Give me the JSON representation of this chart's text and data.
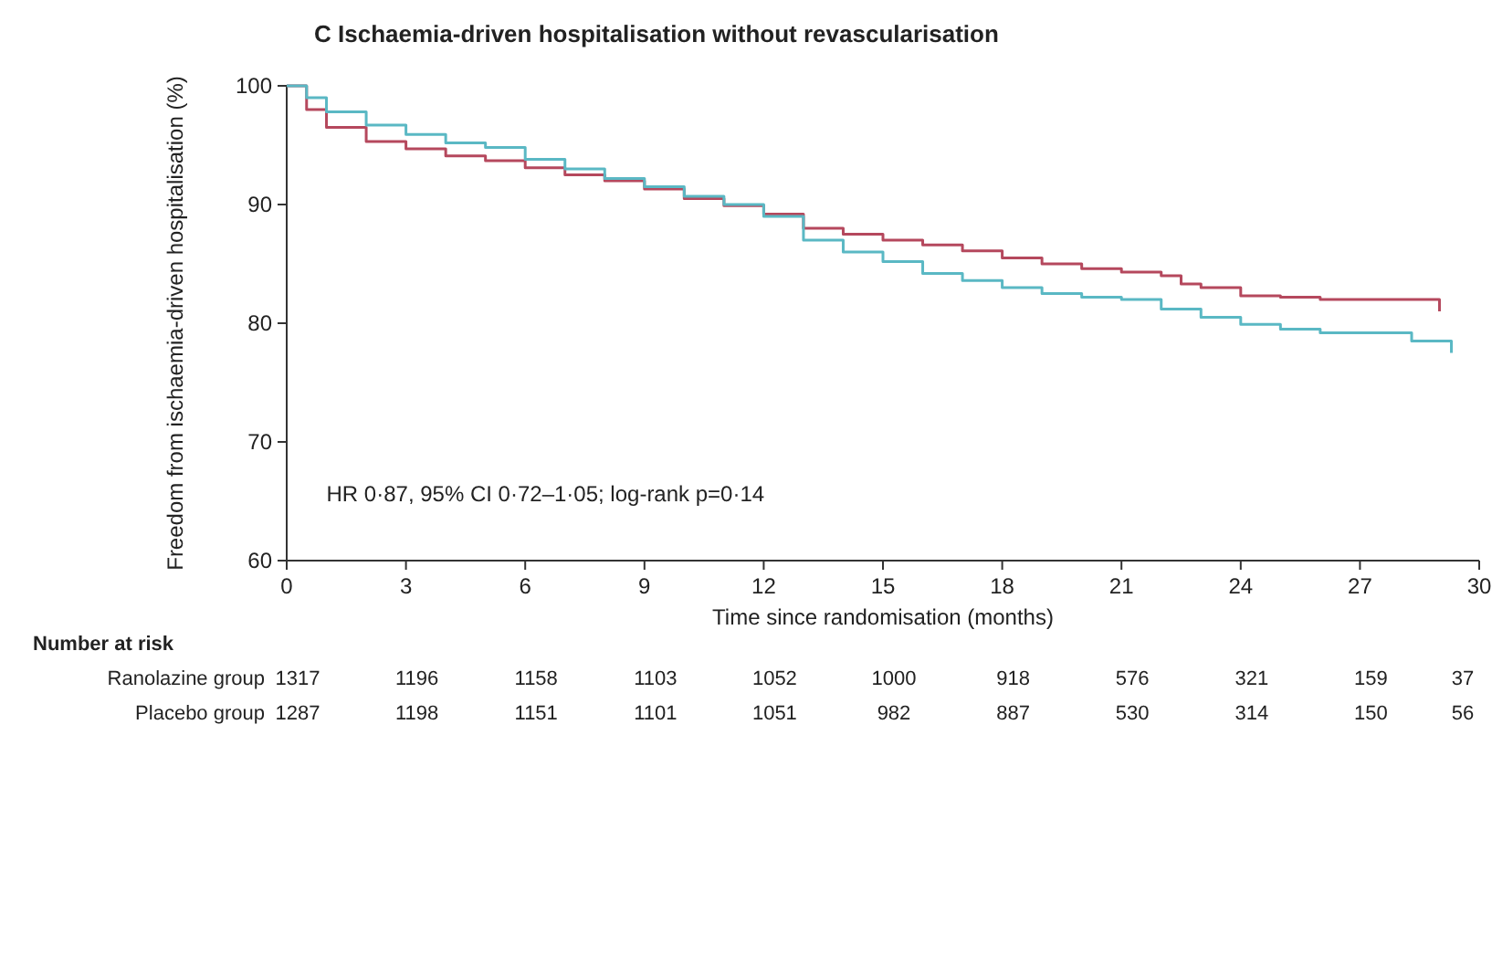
{
  "chart_data": {
    "type": "step",
    "title": "C  Ischaemia-driven hospitalisation without revascularisation",
    "xlabel": "Time since randomisation (months)",
    "ylabel": "Freedom from ischaemia-driven hospitalisation (%)",
    "xlim": [
      0,
      30
    ],
    "xticks": [
      0,
      3,
      6,
      9,
      12,
      15,
      18,
      21,
      24,
      27,
      30
    ],
    "ylim": [
      60,
      100
    ],
    "yticks": [
      60,
      70,
      80,
      90,
      100
    ],
    "series": [
      {
        "color": "#b5485d",
        "x": [
          0,
          0.5,
          1,
          2,
          3,
          4,
          5,
          6,
          7,
          8,
          9,
          10,
          11,
          12,
          13,
          14,
          15,
          16,
          17,
          18,
          19,
          20,
          21,
          22,
          22.5,
          23,
          24,
          25,
          26,
          28,
          29,
          29
        ],
        "values": [
          100,
          98,
          96.5,
          95.3,
          94.7,
          94.1,
          93.7,
          93.1,
          92.5,
          92,
          91.3,
          90.5,
          89.9,
          89.2,
          88,
          87.5,
          87,
          86.6,
          86.1,
          85.5,
          85,
          84.6,
          84.3,
          84,
          83.3,
          83,
          82.3,
          82.2,
          82,
          82,
          82,
          81
        ]
      },
      {
        "color": "#5ab8c4",
        "x": [
          0,
          0.5,
          1,
          2,
          3,
          4,
          5,
          6,
          7,
          8,
          9,
          10,
          11,
          12,
          13,
          14,
          15,
          16,
          17,
          18,
          19,
          20,
          21,
          22,
          23,
          24,
          25,
          26,
          28,
          28.3,
          29.3,
          29.3
        ],
        "values": [
          100,
          99,
          97.8,
          96.7,
          95.9,
          95.2,
          94.8,
          93.8,
          93,
          92.2,
          91.5,
          90.7,
          90,
          89,
          87,
          86,
          85.2,
          84.2,
          83.6,
          83,
          82.5,
          82.2,
          82,
          81.2,
          80.5,
          79.9,
          79.5,
          79.2,
          79.2,
          78.5,
          78.5,
          77.5
        ]
      }
    ],
    "annotations": [
      "HR 0·87, 95% CI 0·72–1·05; log-rank p=0·14",
      "Number at risk",
      "Ranolazine group",
      "1317",
      "1196",
      "1158",
      "1103",
      "1052",
      "1000",
      "918",
      "576",
      "321",
      "159",
      "37",
      "Placebo group",
      "1287",
      "1198",
      "1151",
      "1101",
      "1051",
      "982",
      "887",
      "530",
      "314",
      "150",
      "56"
    ]
  }
}
